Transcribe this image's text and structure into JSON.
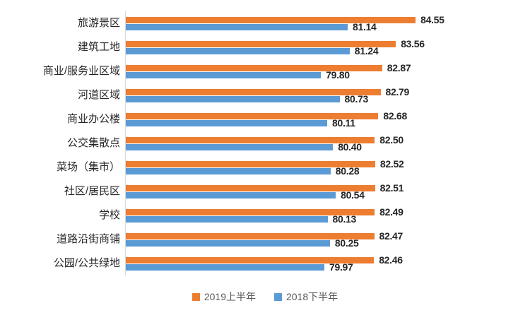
{
  "chart_data": {
    "type": "bar",
    "orientation": "horizontal",
    "title": "",
    "xlabel": "",
    "ylabel": "",
    "grid": false,
    "legend_position": "bottom",
    "xlim": [
      70,
      86
    ],
    "categories": [
      "旅游景区",
      "建筑工地",
      "商业/服务业区域",
      "河道区域",
      "商业办公楼",
      "公交集散点",
      "菜场（集市）",
      "社区/居民区",
      "学校",
      "道路沿街商铺",
      "公园/公共绿地"
    ],
    "series": [
      {
        "name": "2019上半年",
        "color": "#ED7D31",
        "values": [
          84.55,
          83.56,
          82.87,
          82.79,
          82.68,
          82.5,
          82.52,
          82.51,
          82.49,
          82.47,
          82.46
        ]
      },
      {
        "name": "2018下半年",
        "color": "#5B9BD5",
        "values": [
          81.14,
          81.24,
          79.8,
          80.73,
          80.11,
          80.4,
          80.28,
          80.54,
          80.13,
          80.25,
          79.97
        ]
      }
    ],
    "value_labels": true,
    "value_label_decimals": 2
  },
  "colors": {
    "background": "#FFFFFF",
    "axis_line": "#D9D9D9",
    "category_label": "#262626",
    "value_label": "#262626",
    "legend_text": "#595959"
  }
}
